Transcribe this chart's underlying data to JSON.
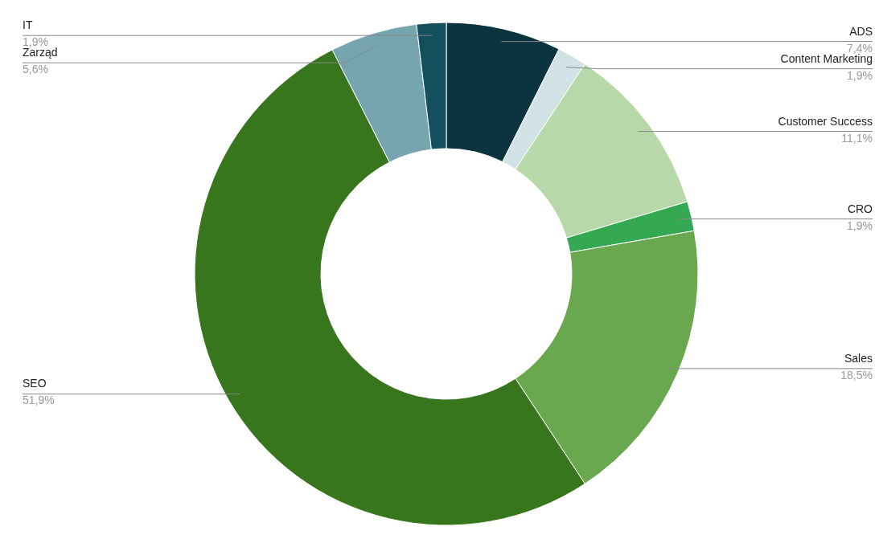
{
  "chart_data": {
    "type": "donut",
    "categories": [
      "ADS",
      "Content Marketing",
      "Customer Success",
      "CRO",
      "Sales",
      "SEO",
      "Zarząd",
      "IT"
    ],
    "values": [
      7.4,
      1.9,
      11.1,
      1.9,
      18.5,
      51.9,
      5.6,
      1.9
    ],
    "value_labels": [
      "7,4%",
      "1,9%",
      "11,1%",
      "1,9%",
      "18,5%",
      "51,9%",
      "5,6%",
      "1,9%"
    ],
    "colors": [
      "#0c3340",
      "#d0e2e6",
      "#b7d8a8",
      "#34a853",
      "#6aa84f",
      "#38761d",
      "#76a5af",
      "#134f5c"
    ]
  }
}
